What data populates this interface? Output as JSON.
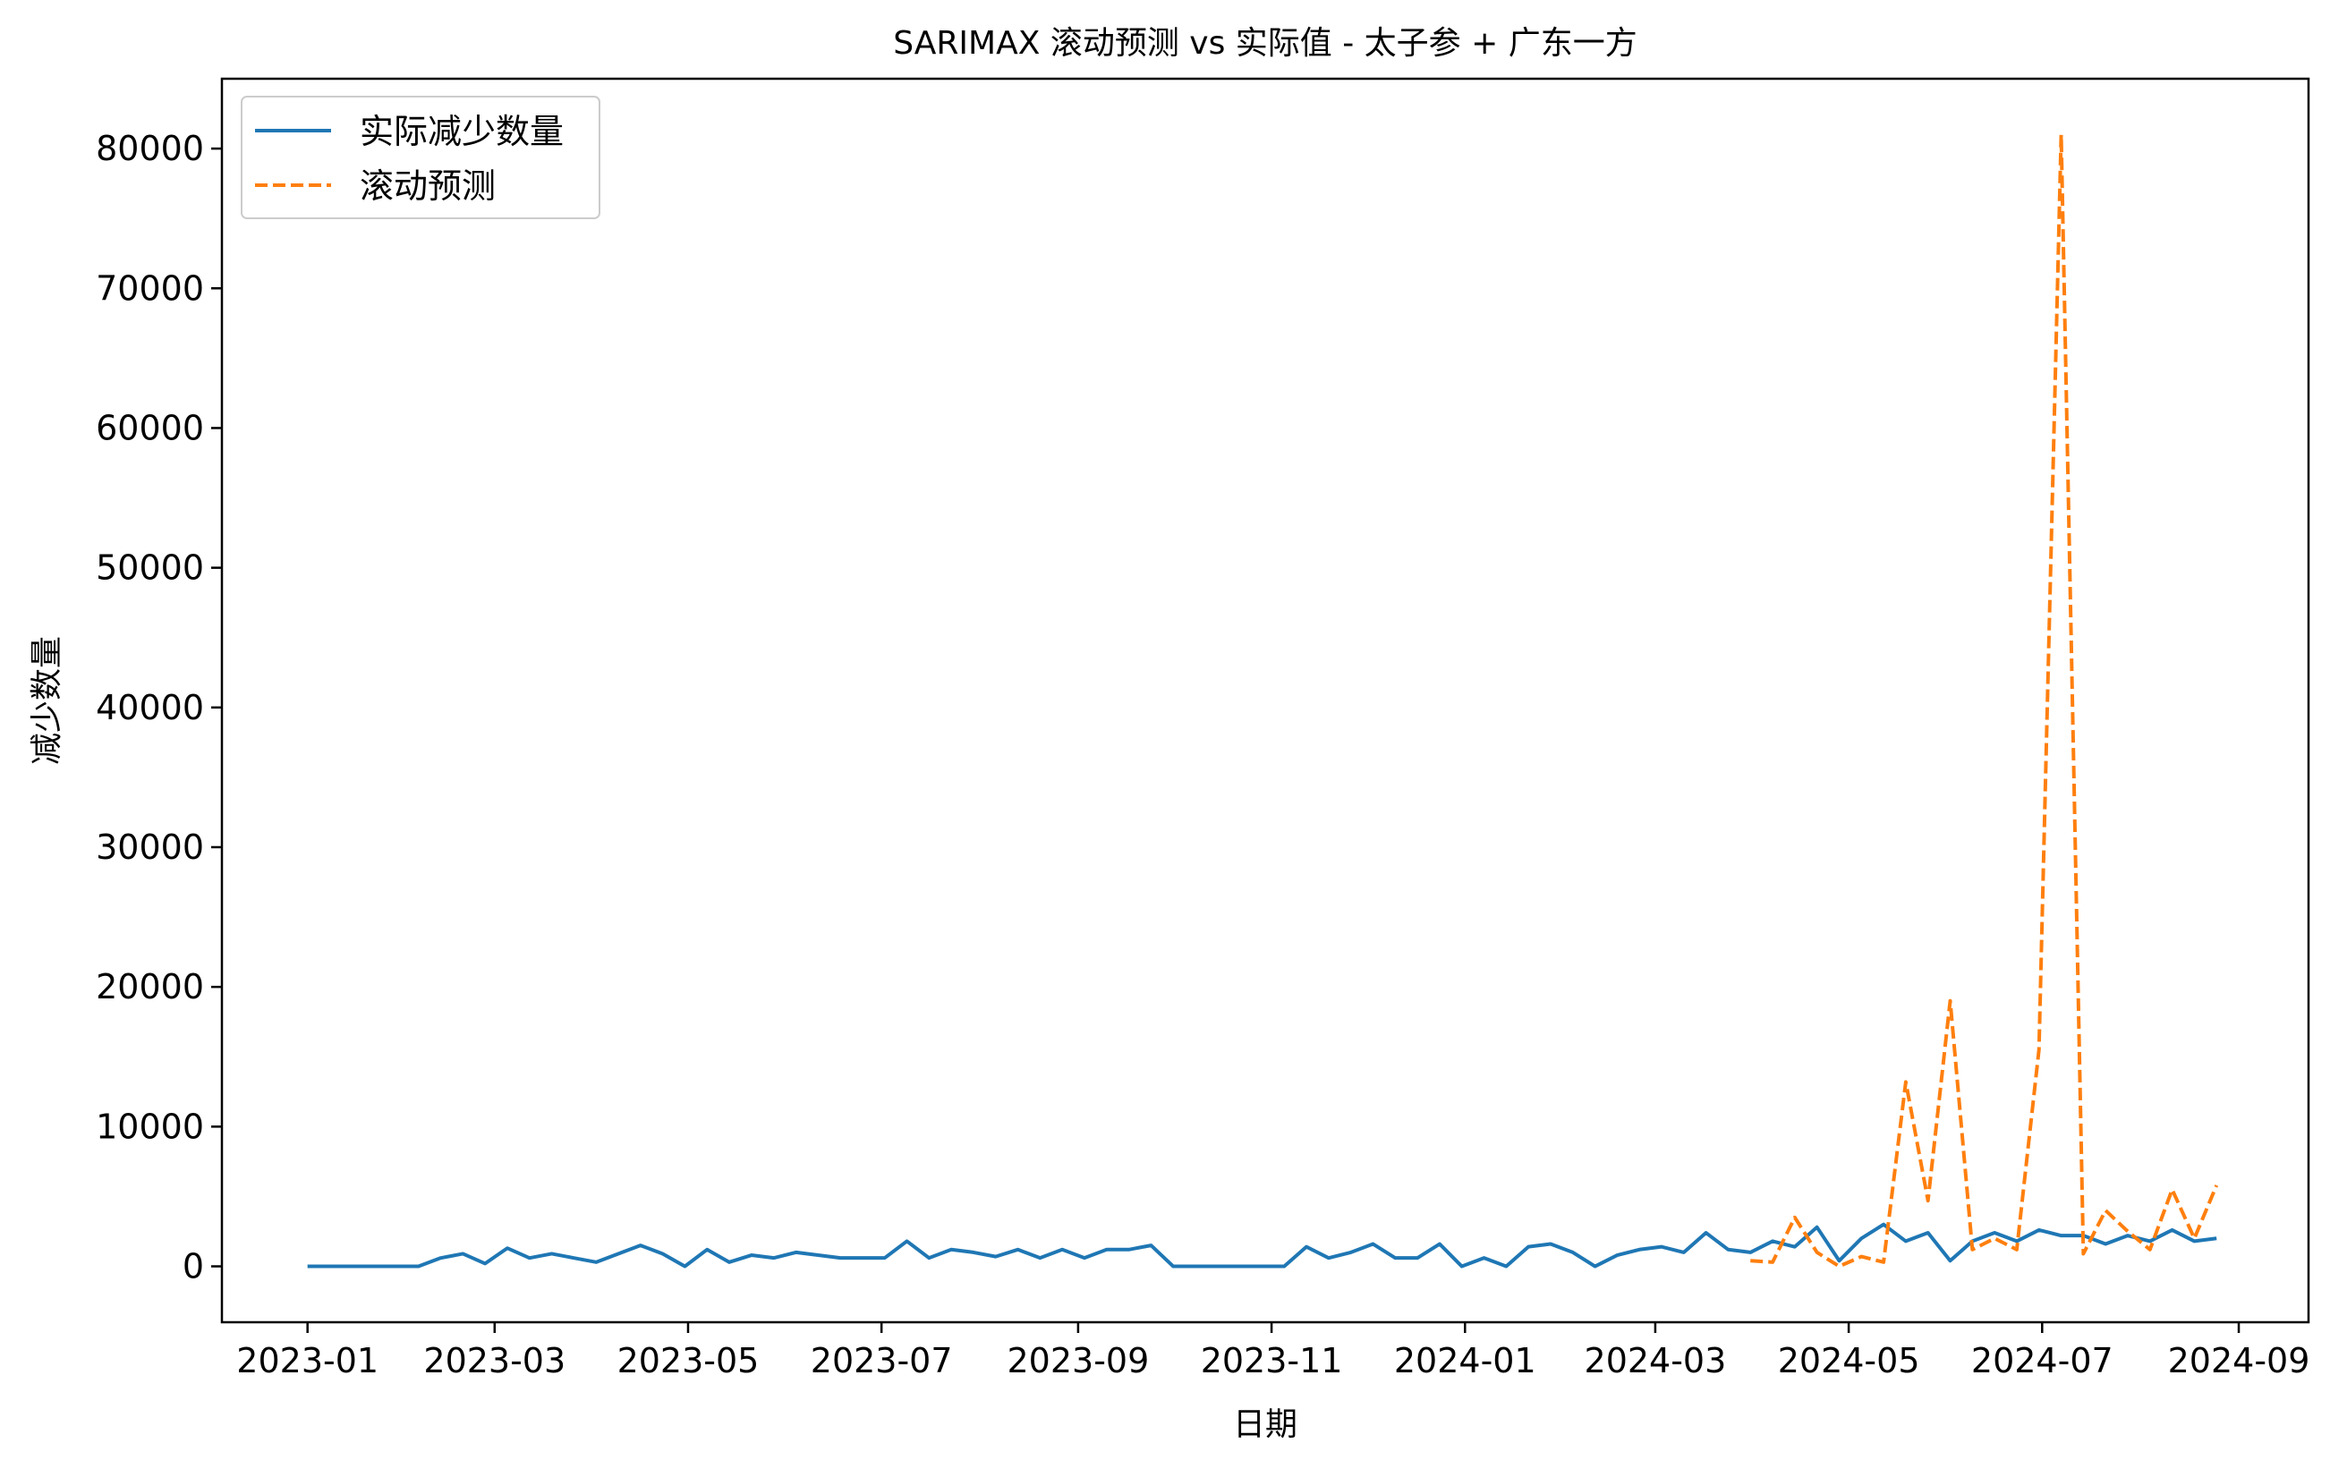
{
  "chart_data": {
    "type": "line",
    "title": "SARIMAX 滚动预测 vs 实际值 - 太子参 + 广东一方",
    "xlabel": "日期",
    "ylabel": "减少数量",
    "xlim": [
      "2022-12-05",
      "2024-09-23"
    ],
    "ylim": [
      -4000,
      85000
    ],
    "x_ticks": [
      {
        "date": "2023-01-01",
        "label": "2023-01"
      },
      {
        "date": "2023-03-01",
        "label": "2023-03"
      },
      {
        "date": "2023-05-01",
        "label": "2023-05"
      },
      {
        "date": "2023-07-01",
        "label": "2023-07"
      },
      {
        "date": "2023-09-01",
        "label": "2023-09"
      },
      {
        "date": "2023-11-01",
        "label": "2023-11"
      },
      {
        "date": "2024-01-01",
        "label": "2024-01"
      },
      {
        "date": "2024-03-01",
        "label": "2024-03"
      },
      {
        "date": "2024-05-01",
        "label": "2024-05"
      },
      {
        "date": "2024-07-01",
        "label": "2024-07"
      },
      {
        "date": "2024-09-01",
        "label": "2024-09"
      }
    ],
    "y_ticks": [
      0,
      10000,
      20000,
      30000,
      40000,
      50000,
      60000,
      70000,
      80000
    ],
    "grid": false,
    "legend": "upper-left",
    "series": [
      {
        "name": "实际减少数量",
        "color": "#1f77b4",
        "style": "solid",
        "points": [
          [
            "2023-01-01",
            0
          ],
          [
            "2023-01-08",
            0
          ],
          [
            "2023-01-15",
            0
          ],
          [
            "2023-01-22",
            0
          ],
          [
            "2023-01-29",
            0
          ],
          [
            "2023-02-05",
            0
          ],
          [
            "2023-02-12",
            600
          ],
          [
            "2023-02-19",
            900
          ],
          [
            "2023-02-26",
            200
          ],
          [
            "2023-03-05",
            1300
          ],
          [
            "2023-03-12",
            600
          ],
          [
            "2023-03-19",
            900
          ],
          [
            "2023-03-26",
            600
          ],
          [
            "2023-04-02",
            300
          ],
          [
            "2023-04-09",
            900
          ],
          [
            "2023-04-16",
            1500
          ],
          [
            "2023-04-23",
            900
          ],
          [
            "2023-04-30",
            0
          ],
          [
            "2023-05-07",
            1200
          ],
          [
            "2023-05-14",
            300
          ],
          [
            "2023-05-21",
            800
          ],
          [
            "2023-05-28",
            600
          ],
          [
            "2023-06-04",
            1000
          ],
          [
            "2023-06-11",
            800
          ],
          [
            "2023-06-18",
            600
          ],
          [
            "2023-06-25",
            600
          ],
          [
            "2023-07-02",
            600
          ],
          [
            "2023-07-09",
            1800
          ],
          [
            "2023-07-16",
            600
          ],
          [
            "2023-07-23",
            1200
          ],
          [
            "2023-07-30",
            1000
          ],
          [
            "2023-08-06",
            700
          ],
          [
            "2023-08-13",
            1200
          ],
          [
            "2023-08-20",
            600
          ],
          [
            "2023-08-27",
            1200
          ],
          [
            "2023-09-03",
            600
          ],
          [
            "2023-09-10",
            1200
          ],
          [
            "2023-09-17",
            1200
          ],
          [
            "2023-09-24",
            1500
          ],
          [
            "2023-10-01",
            0
          ],
          [
            "2023-10-08",
            0
          ],
          [
            "2023-10-15",
            0
          ],
          [
            "2023-10-22",
            0
          ],
          [
            "2023-10-29",
            0
          ],
          [
            "2023-11-05",
            0
          ],
          [
            "2023-11-12",
            1400
          ],
          [
            "2023-11-19",
            600
          ],
          [
            "2023-11-26",
            1000
          ],
          [
            "2023-12-03",
            1600
          ],
          [
            "2023-12-10",
            600
          ],
          [
            "2023-12-17",
            600
          ],
          [
            "2023-12-24",
            1600
          ],
          [
            "2023-12-31",
            0
          ],
          [
            "2024-01-07",
            600
          ],
          [
            "2024-01-14",
            0
          ],
          [
            "2024-01-21",
            1400
          ],
          [
            "2024-01-28",
            1600
          ],
          [
            "2024-02-04",
            1000
          ],
          [
            "2024-02-11",
            0
          ],
          [
            "2024-02-18",
            800
          ],
          [
            "2024-02-25",
            1200
          ],
          [
            "2024-03-03",
            1400
          ],
          [
            "2024-03-10",
            1000
          ],
          [
            "2024-03-17",
            2400
          ],
          [
            "2024-03-24",
            1200
          ],
          [
            "2024-03-31",
            1000
          ],
          [
            "2024-04-07",
            1800
          ],
          [
            "2024-04-14",
            1400
          ],
          [
            "2024-04-21",
            2800
          ],
          [
            "2024-04-28",
            400
          ],
          [
            "2024-05-05",
            2000
          ],
          [
            "2024-05-12",
            3000
          ],
          [
            "2024-05-19",
            1800
          ],
          [
            "2024-05-26",
            2400
          ],
          [
            "2024-06-02",
            400
          ],
          [
            "2024-06-09",
            1800
          ],
          [
            "2024-06-16",
            2400
          ],
          [
            "2024-06-23",
            1800
          ],
          [
            "2024-06-30",
            2600
          ],
          [
            "2024-07-07",
            2200
          ],
          [
            "2024-07-14",
            2200
          ],
          [
            "2024-07-21",
            1600
          ],
          [
            "2024-07-28",
            2200
          ],
          [
            "2024-08-04",
            1800
          ],
          [
            "2024-08-11",
            2600
          ],
          [
            "2024-08-18",
            1800
          ],
          [
            "2024-08-25",
            2000
          ]
        ]
      },
      {
        "name": "滚动预测",
        "color": "#ff7f0e",
        "style": "dashed",
        "points": [
          [
            "2024-03-31",
            400
          ],
          [
            "2024-04-07",
            300
          ],
          [
            "2024-04-14",
            3500
          ],
          [
            "2024-04-21",
            1000
          ],
          [
            "2024-04-28",
            0
          ],
          [
            "2024-05-05",
            700
          ],
          [
            "2024-05-12",
            300
          ],
          [
            "2024-05-19",
            13200
          ],
          [
            "2024-05-26",
            4700
          ],
          [
            "2024-06-02",
            19000
          ],
          [
            "2024-06-09",
            1200
          ],
          [
            "2024-06-16",
            2000
          ],
          [
            "2024-06-23",
            1200
          ],
          [
            "2024-06-30",
            15500
          ],
          [
            "2024-07-07",
            81000
          ],
          [
            "2024-07-14",
            900
          ],
          [
            "2024-07-21",
            4000
          ],
          [
            "2024-07-28",
            2500
          ],
          [
            "2024-08-04",
            1200
          ],
          [
            "2024-08-11",
            5500
          ],
          [
            "2024-08-18",
            2000
          ],
          [
            "2024-08-25",
            5800
          ]
        ]
      }
    ]
  }
}
